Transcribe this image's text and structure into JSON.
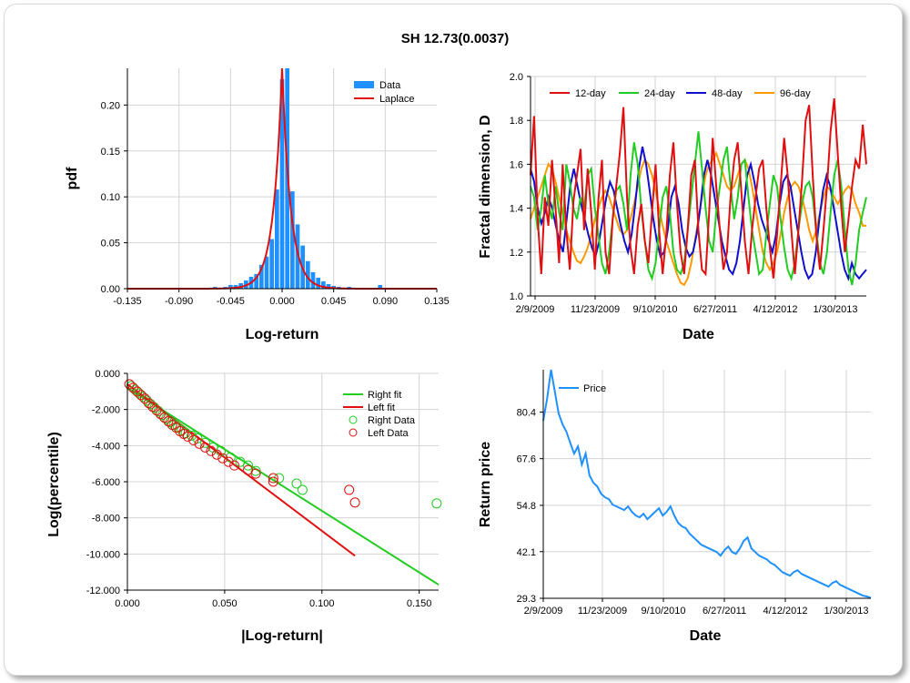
{
  "title": "SH 12.73(0.0037)",
  "chart_data": [
    {
      "id": "pdf",
      "type": "bar",
      "xlabel": "Log-return",
      "ylabel": "pdf",
      "xlim": [
        -0.135,
        0.135
      ],
      "ylim": [
        0,
        0.24
      ],
      "xticks": [
        "-0.135",
        "-0.090",
        "-0.045",
        "0.000",
        "0.045",
        "0.090",
        "0.135"
      ],
      "yticks": [
        "0.00",
        "0.05",
        "0.10",
        "0.15",
        "0.20"
      ],
      "grid": true,
      "legend": "top-right",
      "colors": {
        "bars": "#1e90ff",
        "fit": "#e01010"
      },
      "bar_width": 0.0045,
      "bars": [
        {
          "x": -0.1125,
          "y": 0.001
        },
        {
          "x": -0.081,
          "y": 0.001
        },
        {
          "x": -0.0675,
          "y": 0.001
        },
        {
          "x": -0.0585,
          "y": 0.002
        },
        {
          "x": -0.0495,
          "y": 0.002
        },
        {
          "x": -0.045,
          "y": 0.004
        },
        {
          "x": -0.0405,
          "y": 0.004
        },
        {
          "x": -0.036,
          "y": 0.006
        },
        {
          "x": -0.0315,
          "y": 0.009
        },
        {
          "x": -0.027,
          "y": 0.013
        },
        {
          "x": -0.0225,
          "y": 0.016
        },
        {
          "x": -0.018,
          "y": 0.026
        },
        {
          "x": -0.0135,
          "y": 0.035
        },
        {
          "x": -0.009,
          "y": 0.054
        },
        {
          "x": -0.0045,
          "y": 0.108
        },
        {
          "x": 0.0,
          "y": 0.228
        },
        {
          "x": 0.0045,
          "y": 0.24
        },
        {
          "x": 0.009,
          "y": 0.106
        },
        {
          "x": 0.0135,
          "y": 0.07
        },
        {
          "x": 0.018,
          "y": 0.047
        },
        {
          "x": 0.0225,
          "y": 0.03
        },
        {
          "x": 0.027,
          "y": 0.018
        },
        {
          "x": 0.0315,
          "y": 0.012
        },
        {
          "x": 0.036,
          "y": 0.008
        },
        {
          "x": 0.0405,
          "y": 0.005
        },
        {
          "x": 0.045,
          "y": 0.003
        },
        {
          "x": 0.0495,
          "y": 0.002
        },
        {
          "x": 0.0585,
          "y": 0.002
        },
        {
          "x": 0.072,
          "y": 0.001
        },
        {
          "x": 0.0855,
          "y": 0.004
        }
      ],
      "fit": {
        "type": "laplace",
        "mu": 0.0,
        "peak": 0.24,
        "b": 0.0075
      },
      "legend_entries": [
        "Data",
        "Laplace"
      ]
    },
    {
      "id": "fractal",
      "type": "line",
      "xlabel": "Date",
      "ylabel": "Fractal dimension, D",
      "xticks": [
        "2/9/2009",
        "11/23/2009",
        "9/10/2010",
        "6/27/2011",
        "4/12/2012",
        "1/30/2013"
      ],
      "yticks": [
        "1.0",
        "1.2",
        "1.4",
        "1.6",
        "1.8",
        "2.0"
      ],
      "ylim": [
        1.0,
        2.0
      ],
      "grid": true,
      "legend": "top",
      "series": [
        {
          "name": "12-day",
          "color": "#e01010",
          "values": [
            1.55,
            1.82,
            1.35,
            1.1,
            1.45,
            1.32,
            1.62,
            1.4,
            1.15,
            1.6,
            1.3,
            1.12,
            1.43,
            1.55,
            1.67,
            1.3,
            1.58,
            1.38,
            1.12,
            1.44,
            1.62,
            1.2,
            1.1,
            1.35,
            1.5,
            1.65,
            1.86,
            1.45,
            1.22,
            1.1,
            1.32,
            1.42,
            1.25,
            1.15,
            1.38,
            1.6,
            1.3,
            1.1,
            1.28,
            1.55,
            1.7,
            1.42,
            1.2,
            1.1,
            1.3,
            1.55,
            1.62,
            1.3,
            1.12,
            1.1,
            1.38,
            1.72,
            1.5,
            1.3,
            1.12,
            1.2,
            1.45,
            1.62,
            1.7,
            1.48,
            1.25,
            1.1,
            1.3,
            1.45,
            1.58,
            1.62,
            1.4,
            1.22,
            1.08,
            1.28,
            1.5,
            1.72,
            1.55,
            1.3,
            1.1,
            1.3,
            1.52,
            1.8,
            1.87,
            1.55,
            1.28,
            1.12,
            1.3,
            1.5,
            1.75,
            1.9,
            1.65,
            1.4,
            1.2,
            1.35,
            1.5,
            1.62,
            1.58,
            1.78,
            1.6
          ]
        },
        {
          "name": "24-day",
          "color": "#22cc22",
          "values": [
            1.5,
            1.45,
            1.3,
            1.4,
            1.55,
            1.42,
            1.35,
            1.5,
            1.38,
            1.3,
            1.6,
            1.52,
            1.4,
            1.35,
            1.45,
            1.4,
            1.55,
            1.58,
            1.4,
            1.28,
            1.15,
            1.1,
            1.2,
            1.35,
            1.48,
            1.5,
            1.42,
            1.3,
            1.55,
            1.7,
            1.6,
            1.4,
            1.25,
            1.12,
            1.08,
            1.15,
            1.3,
            1.45,
            1.5,
            1.38,
            1.2,
            1.12,
            1.1,
            1.15,
            1.3,
            1.45,
            1.6,
            1.75,
            1.58,
            1.4,
            1.25,
            1.2,
            1.38,
            1.5,
            1.62,
            1.68,
            1.5,
            1.35,
            1.45,
            1.6,
            1.62,
            1.45,
            1.3,
            1.2,
            1.1,
            1.12,
            1.28,
            1.42,
            1.55,
            1.5,
            1.35,
            1.22,
            1.12,
            1.08,
            1.15,
            1.3,
            1.42,
            1.5,
            1.52,
            1.45,
            1.3,
            1.15,
            1.1,
            1.2,
            1.38,
            1.55,
            1.62,
            1.5,
            1.3,
            1.12,
            1.05,
            1.15,
            1.3,
            1.38,
            1.45
          ]
        },
        {
          "name": "48-day",
          "color": "#1010cc",
          "values": [
            1.58,
            1.52,
            1.4,
            1.33,
            1.38,
            1.45,
            1.4,
            1.32,
            1.25,
            1.2,
            1.35,
            1.5,
            1.58,
            1.5,
            1.42,
            1.35,
            1.28,
            1.22,
            1.18,
            1.25,
            1.35,
            1.45,
            1.52,
            1.48,
            1.4,
            1.32,
            1.25,
            1.2,
            1.28,
            1.42,
            1.58,
            1.68,
            1.6,
            1.48,
            1.35,
            1.25,
            1.18,
            1.2,
            1.3,
            1.45,
            1.5,
            1.42,
            1.3,
            1.22,
            1.18,
            1.2,
            1.28,
            1.4,
            1.55,
            1.62,
            1.55,
            1.45,
            1.35,
            1.25,
            1.18,
            1.12,
            1.1,
            1.15,
            1.25,
            1.4,
            1.55,
            1.6,
            1.52,
            1.42,
            1.35,
            1.3,
            1.25,
            1.2,
            1.28,
            1.42,
            1.52,
            1.55,
            1.5,
            1.4,
            1.3,
            1.2,
            1.12,
            1.08,
            1.1,
            1.2,
            1.35,
            1.48,
            1.55,
            1.5,
            1.4,
            1.3,
            1.2,
            1.12,
            1.08,
            1.15,
            1.1,
            1.08,
            1.1,
            1.12
          ]
        },
        {
          "name": "96-day",
          "color": "#ff9900",
          "values": [
            1.35,
            1.4,
            1.45,
            1.5,
            1.55,
            1.6,
            1.58,
            1.52,
            1.45,
            1.38,
            1.3,
            1.25,
            1.2,
            1.16,
            1.15,
            1.18,
            1.22,
            1.28,
            1.35,
            1.4,
            1.45,
            1.48,
            1.45,
            1.4,
            1.35,
            1.3,
            1.28,
            1.3,
            1.35,
            1.42,
            1.5,
            1.58,
            1.62,
            1.6,
            1.55,
            1.48,
            1.4,
            1.32,
            1.25,
            1.2,
            1.15,
            1.1,
            1.06,
            1.05,
            1.08,
            1.15,
            1.25,
            1.35,
            1.45,
            1.55,
            1.6,
            1.62,
            1.65,
            1.6,
            1.55,
            1.5,
            1.48,
            1.5,
            1.55,
            1.6,
            1.62,
            1.58,
            1.5,
            1.4,
            1.3,
            1.2,
            1.15,
            1.12,
            1.15,
            1.2,
            1.28,
            1.38,
            1.45,
            1.5,
            1.52,
            1.5,
            1.45,
            1.38,
            1.3,
            1.25,
            1.3,
            1.38,
            1.45,
            1.5,
            1.48,
            1.45,
            1.42,
            1.45,
            1.48,
            1.5,
            1.48,
            1.42,
            1.38,
            1.32,
            1.32
          ]
        }
      ]
    },
    {
      "id": "tail",
      "type": "scatter",
      "xlabel": "|Log-return|",
      "ylabel": "Log(percentile)",
      "xlim": [
        0,
        0.16
      ],
      "ylim": [
        -12,
        0
      ],
      "xticks": [
        "0.000",
        "0.050",
        "0.100",
        "0.150"
      ],
      "yticks": [
        "0.000",
        "-2.000",
        "-4.000",
        "-6.000",
        "-8.000",
        "-10.000",
        "-12.000"
      ],
      "grid": true,
      "legend": "top-right",
      "legend_entries": [
        "Right fit",
        "Left fit",
        "Right Data",
        "Left Data"
      ],
      "right_fit": {
        "color": "#22cc22",
        "points": [
          [
            0.0,
            -0.8
          ],
          [
            0.16,
            -11.7
          ]
        ]
      },
      "left_fit": {
        "color": "#e01010",
        "points": [
          [
            0.0,
            -0.6
          ],
          [
            0.117,
            -10.1
          ]
        ]
      },
      "right_data": {
        "color": "#22cc22",
        "points": [
          [
            0.002,
            -0.7
          ],
          [
            0.004,
            -0.9
          ],
          [
            0.006,
            -1.1
          ],
          [
            0.008,
            -1.3
          ],
          [
            0.01,
            -1.5
          ],
          [
            0.012,
            -1.7
          ],
          [
            0.014,
            -1.9
          ],
          [
            0.016,
            -2.1
          ],
          [
            0.018,
            -2.3
          ],
          [
            0.02,
            -2.5
          ],
          [
            0.022,
            -2.7
          ],
          [
            0.024,
            -2.85
          ],
          [
            0.026,
            -3.0
          ],
          [
            0.028,
            -3.15
          ],
          [
            0.03,
            -3.3
          ],
          [
            0.033,
            -3.45
          ],
          [
            0.036,
            -3.6
          ],
          [
            0.04,
            -3.85
          ],
          [
            0.044,
            -4.1
          ],
          [
            0.048,
            -4.3
          ],
          [
            0.053,
            -4.65
          ],
          [
            0.058,
            -4.9
          ],
          [
            0.062,
            -5.1
          ],
          [
            0.066,
            -5.4
          ],
          [
            0.078,
            -5.8
          ],
          [
            0.087,
            -6.1
          ],
          [
            0.09,
            -6.45
          ],
          [
            0.159,
            -7.2
          ]
        ]
      },
      "left_data": {
        "color": "#e01010",
        "points": [
          [
            0.001,
            -0.6
          ],
          [
            0.003,
            -0.8
          ],
          [
            0.005,
            -1.0
          ],
          [
            0.007,
            -1.2
          ],
          [
            0.009,
            -1.4
          ],
          [
            0.011,
            -1.65
          ],
          [
            0.013,
            -1.85
          ],
          [
            0.015,
            -2.05
          ],
          [
            0.017,
            -2.25
          ],
          [
            0.019,
            -2.45
          ],
          [
            0.021,
            -2.65
          ],
          [
            0.023,
            -2.85
          ],
          [
            0.025,
            -3.0
          ],
          [
            0.027,
            -3.2
          ],
          [
            0.029,
            -3.35
          ],
          [
            0.031,
            -3.5
          ],
          [
            0.034,
            -3.7
          ],
          [
            0.037,
            -3.9
          ],
          [
            0.04,
            -4.1
          ],
          [
            0.043,
            -4.3
          ],
          [
            0.046,
            -4.5
          ],
          [
            0.049,
            -4.7
          ],
          [
            0.052,
            -4.9
          ],
          [
            0.055,
            -5.1
          ],
          [
            0.062,
            -5.35
          ],
          [
            0.066,
            -5.55
          ],
          [
            0.075,
            -5.8
          ],
          [
            0.075,
            -6.0
          ],
          [
            0.114,
            -6.45
          ],
          [
            0.117,
            -7.15
          ]
        ]
      }
    },
    {
      "id": "price",
      "type": "line",
      "xlabel": "Date",
      "ylabel": "Return price",
      "ylim": [
        29.3,
        92.0
      ],
      "xticks": [
        "2/9/2009",
        "11/23/2009",
        "9/10/2010",
        "6/27/2011",
        "4/12/2012",
        "1/30/2013"
      ],
      "yticks": [
        "29.3",
        "42.1",
        "54.8",
        "67.6",
        "80.4"
      ],
      "grid": true,
      "legend": "top-left",
      "series": [
        {
          "name": "Price",
          "color": "#1e90ff",
          "values": [
            78.0,
            84.0,
            92.0,
            86.0,
            80.0,
            77.0,
            75.0,
            72.0,
            69.0,
            71.0,
            66.0,
            69.0,
            63.0,
            61.0,
            60.0,
            58.0,
            57.0,
            56.5,
            55.0,
            54.5,
            54.0,
            53.5,
            54.5,
            53.0,
            52.0,
            51.5,
            52.5,
            51.0,
            52.0,
            53.0,
            54.0,
            52.0,
            53.0,
            54.5,
            52.0,
            50.0,
            49.0,
            48.5,
            47.0,
            46.0,
            45.0,
            44.0,
            43.5,
            43.0,
            42.5,
            42.0,
            41.0,
            42.5,
            43.5,
            42.0,
            41.5,
            43.0,
            45.0,
            46.0,
            43.0,
            42.0,
            41.0,
            40.5,
            40.0,
            39.0,
            38.5,
            37.5,
            36.5,
            36.0,
            35.5,
            36.5,
            37.0,
            36.0,
            35.5,
            35.0,
            34.5,
            34.0,
            33.5,
            33.0,
            32.5,
            33.5,
            34.0,
            33.0,
            32.5,
            32.0,
            31.5,
            31.0,
            30.5,
            30.0,
            29.8,
            29.4
          ]
        }
      ]
    }
  ]
}
